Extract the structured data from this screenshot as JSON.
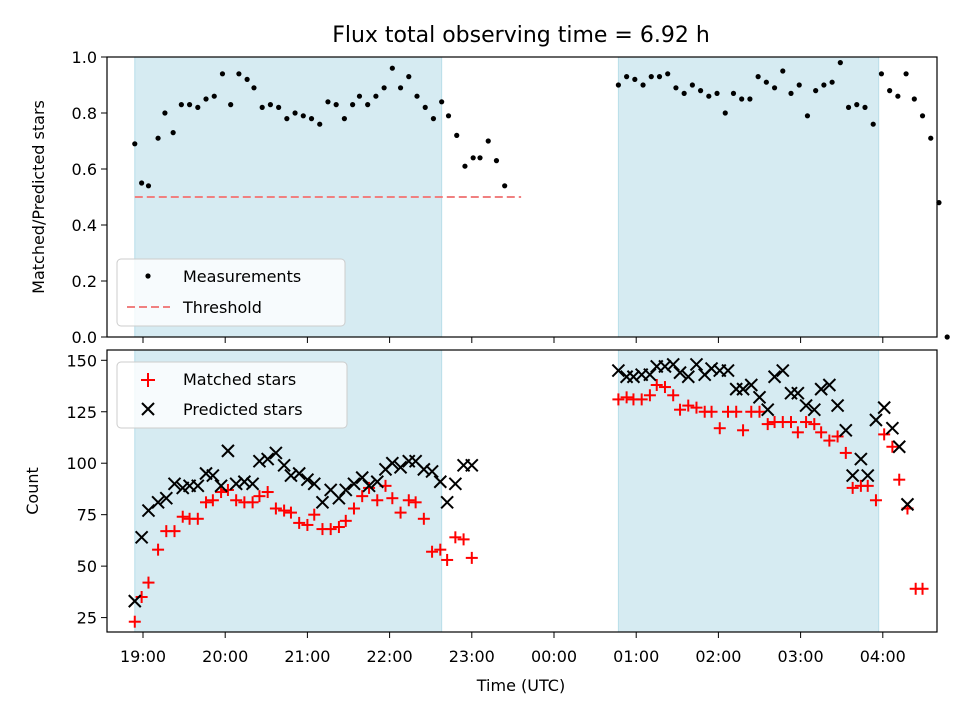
{
  "chart_data": [
    {
      "type": "scatter",
      "title": "Flux total observing time = 6.92 h",
      "ylabel": "Matched/Predicted stars",
      "xlabel": "",
      "ylim": [
        0,
        1.0
      ],
      "yticks": [
        "0.0",
        "0.2",
        "0.4",
        "0.6",
        "0.8",
        "1.0"
      ],
      "legend_position": "lower-left",
      "threshold": {
        "name": "Threshold",
        "value": 0.5,
        "x_range": [
          "18:54",
          "23:36"
        ],
        "color": "#f08080"
      },
      "shaded_intervals": [
        [
          "18:54",
          "22:38"
        ],
        [
          "00:47",
          "03:57"
        ]
      ],
      "series": [
        {
          "name": "Measurements",
          "color": "#000000",
          "points": [
            [
              "18:54",
              0.69
            ],
            [
              "18:59",
              0.55
            ],
            [
              "19:04",
              0.54
            ],
            [
              "19:11",
              0.71
            ],
            [
              "19:16",
              0.8
            ],
            [
              "19:22",
              0.73
            ],
            [
              "19:28",
              0.83
            ],
            [
              "19:34",
              0.83
            ],
            [
              "19:40",
              0.82
            ],
            [
              "19:46",
              0.85
            ],
            [
              "19:52",
              0.86
            ],
            [
              "19:58",
              0.94
            ],
            [
              "20:04",
              0.83
            ],
            [
              "20:10",
              0.94
            ],
            [
              "20:16",
              0.92
            ],
            [
              "20:21",
              0.89
            ],
            [
              "20:27",
              0.82
            ],
            [
              "20:33",
              0.83
            ],
            [
              "20:39",
              0.82
            ],
            [
              "20:45",
              0.78
            ],
            [
              "20:51",
              0.8
            ],
            [
              "20:57",
              0.79
            ],
            [
              "21:03",
              0.78
            ],
            [
              "21:09",
              0.76
            ],
            [
              "21:15",
              0.84
            ],
            [
              "21:21",
              0.83
            ],
            [
              "21:27",
              0.78
            ],
            [
              "21:33",
              0.83
            ],
            [
              "21:38",
              0.86
            ],
            [
              "21:44",
              0.83
            ],
            [
              "21:50",
              0.86
            ],
            [
              "21:56",
              0.89
            ],
            [
              "22:02",
              0.96
            ],
            [
              "22:08",
              0.89
            ],
            [
              "22:14",
              0.93
            ],
            [
              "22:20",
              0.86
            ],
            [
              "22:26",
              0.82
            ],
            [
              "22:32",
              0.78
            ],
            [
              "22:38",
              0.84
            ],
            [
              "22:43",
              0.79
            ],
            [
              "22:49",
              0.72
            ],
            [
              "22:55",
              0.61
            ],
            [
              "23:01",
              0.64
            ],
            [
              "23:06",
              0.64
            ],
            [
              "23:12",
              0.7
            ],
            [
              "23:18",
              0.63
            ],
            [
              "23:24",
              0.54
            ],
            [
              "00:47",
              0.9
            ],
            [
              "00:53",
              0.93
            ],
            [
              "00:59",
              0.92
            ],
            [
              "01:05",
              0.9
            ],
            [
              "01:11",
              0.93
            ],
            [
              "01:17",
              0.93
            ],
            [
              "01:23",
              0.94
            ],
            [
              "01:29",
              0.89
            ],
            [
              "01:35",
              0.87
            ],
            [
              "01:41",
              0.9
            ],
            [
              "01:47",
              0.88
            ],
            [
              "01:53",
              0.86
            ],
            [
              "01:59",
              0.87
            ],
            [
              "02:05",
              0.8
            ],
            [
              "02:11",
              0.87
            ],
            [
              "02:17",
              0.85
            ],
            [
              "02:23",
              0.85
            ],
            [
              "02:29",
              0.93
            ],
            [
              "02:35",
              0.91
            ],
            [
              "02:41",
              0.89
            ],
            [
              "02:47",
              0.95
            ],
            [
              "02:53",
              0.87
            ],
            [
              "02:59",
              0.9
            ],
            [
              "03:05",
              0.79
            ],
            [
              "03:11",
              0.88
            ],
            [
              "03:17",
              0.9
            ],
            [
              "03:23",
              0.91
            ],
            [
              "03:29",
              0.98
            ],
            [
              "03:35",
              0.82
            ],
            [
              "03:41",
              0.83
            ],
            [
              "03:47",
              0.82
            ],
            [
              "03:53",
              0.76
            ],
            [
              "03:59",
              0.94
            ],
            [
              "04:05",
              0.88
            ],
            [
              "04:11",
              0.86
            ],
            [
              "04:17",
              0.94
            ],
            [
              "04:23",
              0.85
            ],
            [
              "04:29",
              0.79
            ],
            [
              "04:35",
              0.71
            ],
            [
              "04:41",
              0.48
            ],
            [
              "04:47",
              0.0
            ]
          ]
        }
      ]
    },
    {
      "type": "scatter",
      "title": "",
      "xlabel": "Time (UTC)",
      "ylabel": "Count",
      "ylim": [
        18,
        155
      ],
      "yticks": [
        "25",
        "50",
        "75",
        "100",
        "125",
        "150"
      ],
      "xticks": [
        "19:00",
        "20:00",
        "21:00",
        "22:00",
        "23:00",
        "00:00",
        "01:00",
        "02:00",
        "03:00",
        "04:00"
      ],
      "legend_position": "upper-left",
      "shaded_intervals": [
        [
          "18:54",
          "22:38"
        ],
        [
          "00:47",
          "03:57"
        ]
      ],
      "series": [
        {
          "name": "Matched stars",
          "marker": "plus",
          "color": "#ff0000",
          "points": [
            [
              "18:54",
              23
            ],
            [
              "18:59",
              35
            ],
            [
              "19:04",
              42
            ],
            [
              "19:11",
              58
            ],
            [
              "19:17",
              67
            ],
            [
              "19:23",
              67
            ],
            [
              "19:29",
              74
            ],
            [
              "19:34",
              73
            ],
            [
              "19:40",
              73
            ],
            [
              "19:46",
              81
            ],
            [
              "19:51",
              82
            ],
            [
              "19:57",
              86
            ],
            [
              "20:02",
              87
            ],
            [
              "20:08",
              82
            ],
            [
              "20:14",
              81
            ],
            [
              "20:20",
              81
            ],
            [
              "20:25",
              84
            ],
            [
              "20:31",
              86
            ],
            [
              "20:37",
              78
            ],
            [
              "20:43",
              77
            ],
            [
              "20:48",
              76
            ],
            [
              "20:54",
              71
            ],
            [
              "21:00",
              70
            ],
            [
              "21:05",
              75
            ],
            [
              "21:11",
              68
            ],
            [
              "21:17",
              68
            ],
            [
              "21:23",
              69
            ],
            [
              "21:28",
              72
            ],
            [
              "21:34",
              78
            ],
            [
              "21:40",
              84
            ],
            [
              "21:45",
              88
            ],
            [
              "21:51",
              82
            ],
            [
              "21:57",
              89
            ],
            [
              "22:02",
              83
            ],
            [
              "22:08",
              76
            ],
            [
              "22:14",
              82
            ],
            [
              "22:19",
              81
            ],
            [
              "22:25",
              73
            ],
            [
              "22:31",
              57
            ],
            [
              "22:37",
              58
            ],
            [
              "22:42",
              53
            ],
            [
              "22:48",
              64
            ],
            [
              "22:54",
              63
            ],
            [
              "23:00",
              54
            ],
            [
              "00:47",
              131
            ],
            [
              "00:53",
              132
            ],
            [
              "00:58",
              131
            ],
            [
              "01:04",
              131
            ],
            [
              "01:10",
              133
            ],
            [
              "01:15",
              138
            ],
            [
              "01:21",
              137
            ],
            [
              "01:27",
              133
            ],
            [
              "01:32",
              126
            ],
            [
              "01:38",
              128
            ],
            [
              "01:44",
              127
            ],
            [
              "01:50",
              125
            ],
            [
              "01:55",
              125
            ],
            [
              "02:01",
              117
            ],
            [
              "02:07",
              125
            ],
            [
              "02:13",
              125
            ],
            [
              "02:18",
              116
            ],
            [
              "02:24",
              125
            ],
            [
              "02:30",
              125
            ],
            [
              "02:36",
              119
            ],
            [
              "02:41",
              120
            ],
            [
              "02:47",
              120
            ],
            [
              "02:53",
              120
            ],
            [
              "02:58",
              115
            ],
            [
              "03:04",
              120
            ],
            [
              "03:10",
              119
            ],
            [
              "03:15",
              115
            ],
            [
              "03:21",
              111
            ],
            [
              "03:27",
              113
            ],
            [
              "03:33",
              105
            ],
            [
              "03:38",
              88
            ],
            [
              "03:44",
              89
            ],
            [
              "03:49",
              89
            ],
            [
              "03:55",
              82
            ],
            [
              "04:01",
              114
            ],
            [
              "04:07",
              108
            ],
            [
              "04:12",
              92
            ],
            [
              "04:18",
              78
            ],
            [
              "04:24",
              39
            ],
            [
              "04:29",
              39
            ]
          ]
        },
        {
          "name": "Predicted stars",
          "marker": "cross",
          "color": "#000000",
          "points": [
            [
              "18:54",
              33
            ],
            [
              "18:59",
              64
            ],
            [
              "19:04",
              77
            ],
            [
              "19:11",
              81
            ],
            [
              "19:17",
              83
            ],
            [
              "19:23",
              90
            ],
            [
              "19:29",
              88
            ],
            [
              "19:34",
              89
            ],
            [
              "19:40",
              89
            ],
            [
              "19:46",
              95
            ],
            [
              "19:51",
              94
            ],
            [
              "19:57",
              89
            ],
            [
              "20:02",
              106
            ],
            [
              "20:08",
              90
            ],
            [
              "20:14",
              91
            ],
            [
              "20:20",
              90
            ],
            [
              "20:25",
              101
            ],
            [
              "20:31",
              102
            ],
            [
              "20:37",
              105
            ],
            [
              "20:43",
              99
            ],
            [
              "20:48",
              94
            ],
            [
              "20:54",
              95
            ],
            [
              "21:00",
              92
            ],
            [
              "21:05",
              90
            ],
            [
              "21:11",
              81
            ],
            [
              "21:17",
              87
            ],
            [
              "21:23",
              83
            ],
            [
              "21:28",
              87
            ],
            [
              "21:34",
              90
            ],
            [
              "21:40",
              93
            ],
            [
              "21:45",
              89
            ],
            [
              "21:51",
              91
            ],
            [
              "21:57",
              97
            ],
            [
              "22:02",
              100
            ],
            [
              "22:08",
              98
            ],
            [
              "22:14",
              101
            ],
            [
              "22:19",
              101
            ],
            [
              "22:25",
              97
            ],
            [
              "22:31",
              96
            ],
            [
              "22:37",
              91
            ],
            [
              "22:42",
              81
            ],
            [
              "22:48",
              90
            ],
            [
              "22:54",
              99
            ],
            [
              "23:00",
              99
            ],
            [
              "00:47",
              145
            ],
            [
              "00:53",
              142
            ],
            [
              "00:58",
              142
            ],
            [
              "01:04",
              143
            ],
            [
              "01:10",
              143
            ],
            [
              "01:15",
              147
            ],
            [
              "01:21",
              147
            ],
            [
              "01:27",
              148
            ],
            [
              "01:32",
              144
            ],
            [
              "01:38",
              142
            ],
            [
              "01:44",
              148
            ],
            [
              "01:50",
              143
            ],
            [
              "01:55",
              146
            ],
            [
              "02:01",
              145
            ],
            [
              "02:07",
              145
            ],
            [
              "02:13",
              136
            ],
            [
              "02:18",
              136
            ],
            [
              "02:24",
              138
            ],
            [
              "02:30",
              132
            ],
            [
              "02:36",
              126
            ],
            [
              "02:41",
              142
            ],
            [
              "02:47",
              145
            ],
            [
              "02:53",
              134
            ],
            [
              "02:58",
              134
            ],
            [
              "03:04",
              128
            ],
            [
              "03:10",
              126
            ],
            [
              "03:15",
              136
            ],
            [
              "03:21",
              138
            ],
            [
              "03:27",
              128
            ],
            [
              "03:33",
              116
            ],
            [
              "03:38",
              94
            ],
            [
              "03:44",
              102
            ],
            [
              "03:49",
              94
            ],
            [
              "03:55",
              121
            ],
            [
              "04:01",
              127
            ],
            [
              "04:07",
              117
            ],
            [
              "04:12",
              108
            ],
            [
              "04:18",
              80
            ]
          ]
        }
      ]
    }
  ]
}
